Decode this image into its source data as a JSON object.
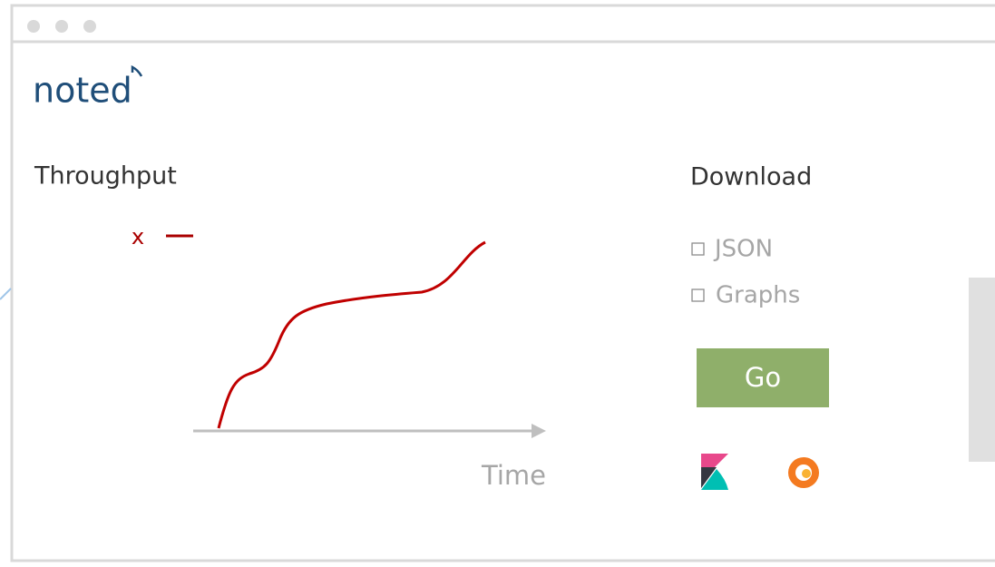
{
  "app": {
    "logo": "noted"
  },
  "throughput": {
    "title": "Throughput",
    "legend": "x",
    "x_axis_label": "Time"
  },
  "download": {
    "title": "Download",
    "options": [
      "JSON",
      "Graphs"
    ],
    "button": "Go"
  }
}
